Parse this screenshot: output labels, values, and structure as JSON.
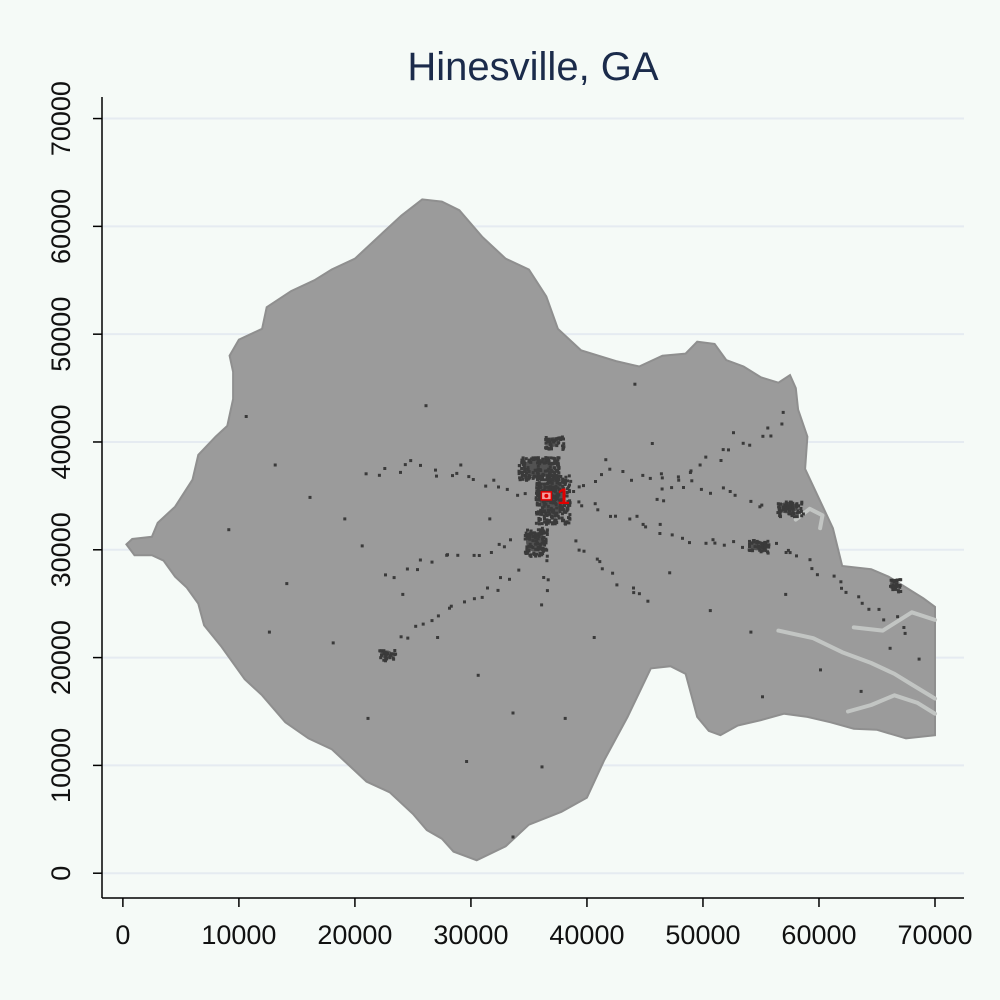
{
  "chart_data": {
    "type": "map",
    "title": "Hinesville, GA",
    "xlabel": "",
    "ylabel": "",
    "xlim": [
      -1800,
      72500
    ],
    "ylim": [
      -2300,
      72000
    ],
    "x_ticks": [
      0,
      10000,
      20000,
      30000,
      40000,
      50000,
      60000,
      70000
    ],
    "y_ticks": [
      0,
      10000,
      20000,
      30000,
      40000,
      50000,
      60000,
      70000
    ],
    "x_tick_labels": [
      "0",
      "10000",
      "20000",
      "30000",
      "40000",
      "50000",
      "60000",
      "70000"
    ],
    "y_tick_labels": [
      "0",
      "10000",
      "20000",
      "30000",
      "40000",
      "50000",
      "60000",
      "70000"
    ],
    "grid": "horizontal",
    "region_outline": [
      [
        300,
        30500
      ],
      [
        800,
        31000
      ],
      [
        2500,
        31200
      ],
      [
        3000,
        32500
      ],
      [
        4500,
        34000
      ],
      [
        6000,
        36500
      ],
      [
        6500,
        38800
      ],
      [
        8000,
        40500
      ],
      [
        9000,
        41500
      ],
      [
        9500,
        44000
      ],
      [
        9500,
        46500
      ],
      [
        9200,
        48000
      ],
      [
        10000,
        49500
      ],
      [
        12000,
        50500
      ],
      [
        12400,
        52500
      ],
      [
        14500,
        54000
      ],
      [
        16500,
        55000
      ],
      [
        18000,
        56000
      ],
      [
        20000,
        57000
      ],
      [
        22000,
        59000
      ],
      [
        24000,
        61000
      ],
      [
        25800,
        62500
      ],
      [
        27500,
        62300
      ],
      [
        29000,
        61500
      ],
      [
        31000,
        59000
      ],
      [
        33000,
        57000
      ],
      [
        35000,
        56000
      ],
      [
        36500,
        53500
      ],
      [
        37500,
        50500
      ],
      [
        39500,
        48500
      ],
      [
        41000,
        48000
      ],
      [
        42500,
        47500
      ],
      [
        44500,
        47000
      ],
      [
        46500,
        48000
      ],
      [
        48500,
        48200
      ],
      [
        49500,
        49300
      ],
      [
        51000,
        49100
      ],
      [
        52000,
        47600
      ],
      [
        53500,
        47000
      ],
      [
        55000,
        46000
      ],
      [
        56500,
        45500
      ],
      [
        57500,
        46200
      ],
      [
        58000,
        45000
      ],
      [
        58200,
        43000
      ],
      [
        59000,
        40500
      ],
      [
        58800,
        37500
      ],
      [
        59800,
        35200
      ],
      [
        61200,
        32000
      ],
      [
        62000,
        28500
      ],
      [
        64500,
        28200
      ],
      [
        66000,
        27500
      ],
      [
        67500,
        26500
      ],
      [
        69000,
        25500
      ],
      [
        70000,
        24700
      ],
      [
        70000,
        12800
      ],
      [
        67500,
        12500
      ],
      [
        65000,
        13300
      ],
      [
        63000,
        13400
      ],
      [
        61000,
        14000
      ],
      [
        59000,
        14500
      ],
      [
        57000,
        14800
      ],
      [
        55000,
        14200
      ],
      [
        53000,
        13700
      ],
      [
        51500,
        12800
      ],
      [
        50500,
        13200
      ],
      [
        49500,
        14500
      ],
      [
        49000,
        16500
      ],
      [
        48500,
        18500
      ],
      [
        47200,
        19200
      ],
      [
        45500,
        19000
      ],
      [
        43500,
        14500
      ],
      [
        41500,
        10500
      ],
      [
        40000,
        7000
      ],
      [
        37800,
        5700
      ],
      [
        35000,
        4500
      ],
      [
        33000,
        2500
      ],
      [
        30500,
        1200
      ],
      [
        28500,
        2000
      ],
      [
        27500,
        3200
      ],
      [
        26200,
        4000
      ],
      [
        25000,
        5500
      ],
      [
        23000,
        7500
      ],
      [
        21000,
        8500
      ],
      [
        19500,
        10000
      ],
      [
        18000,
        11500
      ],
      [
        16000,
        12500
      ],
      [
        14000,
        14000
      ],
      [
        12000,
        16500
      ],
      [
        10500,
        18000
      ],
      [
        8500,
        21000
      ],
      [
        7000,
        23000
      ],
      [
        6500,
        25000
      ],
      [
        5500,
        26500
      ],
      [
        4500,
        27500
      ],
      [
        3500,
        29000
      ],
      [
        2500,
        29500
      ],
      [
        1000,
        29500
      ]
    ],
    "marker": {
      "label": "1",
      "x": 36500,
      "y": 35000
    },
    "colors": {
      "background": "#f5faf7",
      "region_fill": "#9b9b9b",
      "region_edge": "#8f8f8f",
      "developed": "#3a3a3a",
      "water": "#c2c5c3",
      "marker": "#e00000",
      "grid": "#e5ebf1",
      "title": "#1b2b4b"
    },
    "developed_clusters": [
      {
        "x": 35500,
        "y": 32500,
        "w": 3000,
        "h": 4500
      },
      {
        "x": 34500,
        "y": 29500,
        "w": 2000,
        "h": 2500
      },
      {
        "x": 34000,
        "y": 36500,
        "w": 3500,
        "h": 2200
      },
      {
        "x": 36300,
        "y": 39400,
        "w": 1600,
        "h": 1200
      },
      {
        "x": 22000,
        "y": 19800,
        "w": 1400,
        "h": 1000
      },
      {
        "x": 56200,
        "y": 33200,
        "w": 2200,
        "h": 1400
      },
      {
        "x": 53800,
        "y": 29800,
        "w": 1800,
        "h": 1200
      },
      {
        "x": 66000,
        "y": 26200,
        "w": 1000,
        "h": 1200
      }
    ],
    "developed_paths": [
      [
        [
          38000,
          34500
        ],
        [
          41000,
          33800
        ],
        [
          44000,
          33200
        ],
        [
          46500,
          32000
        ],
        [
          49000,
          31200
        ],
        [
          52000,
          30500
        ],
        [
          55000,
          30500
        ],
        [
          57500,
          29800
        ]
      ],
      [
        [
          38500,
          36000
        ],
        [
          42000,
          37200
        ],
        [
          46000,
          36800
        ],
        [
          50000,
          36000
        ],
        [
          53000,
          35000
        ],
        [
          56000,
          34000
        ],
        [
          59500,
          33500
        ]
      ],
      [
        [
          33500,
          31000
        ],
        [
          30500,
          30000
        ],
        [
          27500,
          29200
        ],
        [
          25000,
          28500
        ],
        [
          22000,
          27000
        ]
      ],
      [
        [
          34500,
          35000
        ],
        [
          31000,
          36500
        ],
        [
          28000,
          37200
        ],
        [
          25000,
          38000
        ],
        [
          22000,
          37000
        ],
        [
          20500,
          36800
        ]
      ],
      [
        [
          34000,
          28000
        ],
        [
          31000,
          26000
        ],
        [
          28500,
          25000
        ],
        [
          25500,
          23500
        ],
        [
          23000,
          21000
        ]
      ],
      [
        [
          39000,
          31000
        ],
        [
          41000,
          29000
        ],
        [
          43500,
          26500
        ],
        [
          46000,
          25000
        ]
      ],
      [
        [
          57000,
          30000
        ],
        [
          59500,
          28500
        ],
        [
          62000,
          26500
        ],
        [
          64500,
          25000
        ],
        [
          66500,
          23500
        ],
        [
          68000,
          21500
        ]
      ],
      [
        [
          45500,
          34500
        ],
        [
          49000,
          37500
        ],
        [
          52500,
          39500
        ],
        [
          55500,
          40500
        ],
        [
          57000,
          43500
        ]
      ],
      [
        [
          36000,
          32000
        ],
        [
          36500,
          27000
        ],
        [
          35800,
          24500
        ]
      ]
    ],
    "water_paths": [
      [
        [
          56500,
          22500
        ],
        [
          59500,
          21800
        ],
        [
          62000,
          20500
        ],
        [
          64500,
          19500
        ],
        [
          66500,
          18500
        ],
        [
          68000,
          17500
        ],
        [
          70000,
          16200
        ]
      ],
      [
        [
          62500,
          15000
        ],
        [
          64500,
          15600
        ],
        [
          66500,
          16500
        ],
        [
          68500,
          15800
        ],
        [
          70000,
          14800
        ]
      ],
      [
        [
          63000,
          22800
        ],
        [
          65500,
          22500
        ],
        [
          68000,
          24200
        ],
        [
          70000,
          23500
        ]
      ],
      [
        [
          58000,
          32800
        ],
        [
          59200,
          33800
        ],
        [
          60300,
          33200
        ],
        [
          60100,
          32000
        ]
      ]
    ]
  }
}
